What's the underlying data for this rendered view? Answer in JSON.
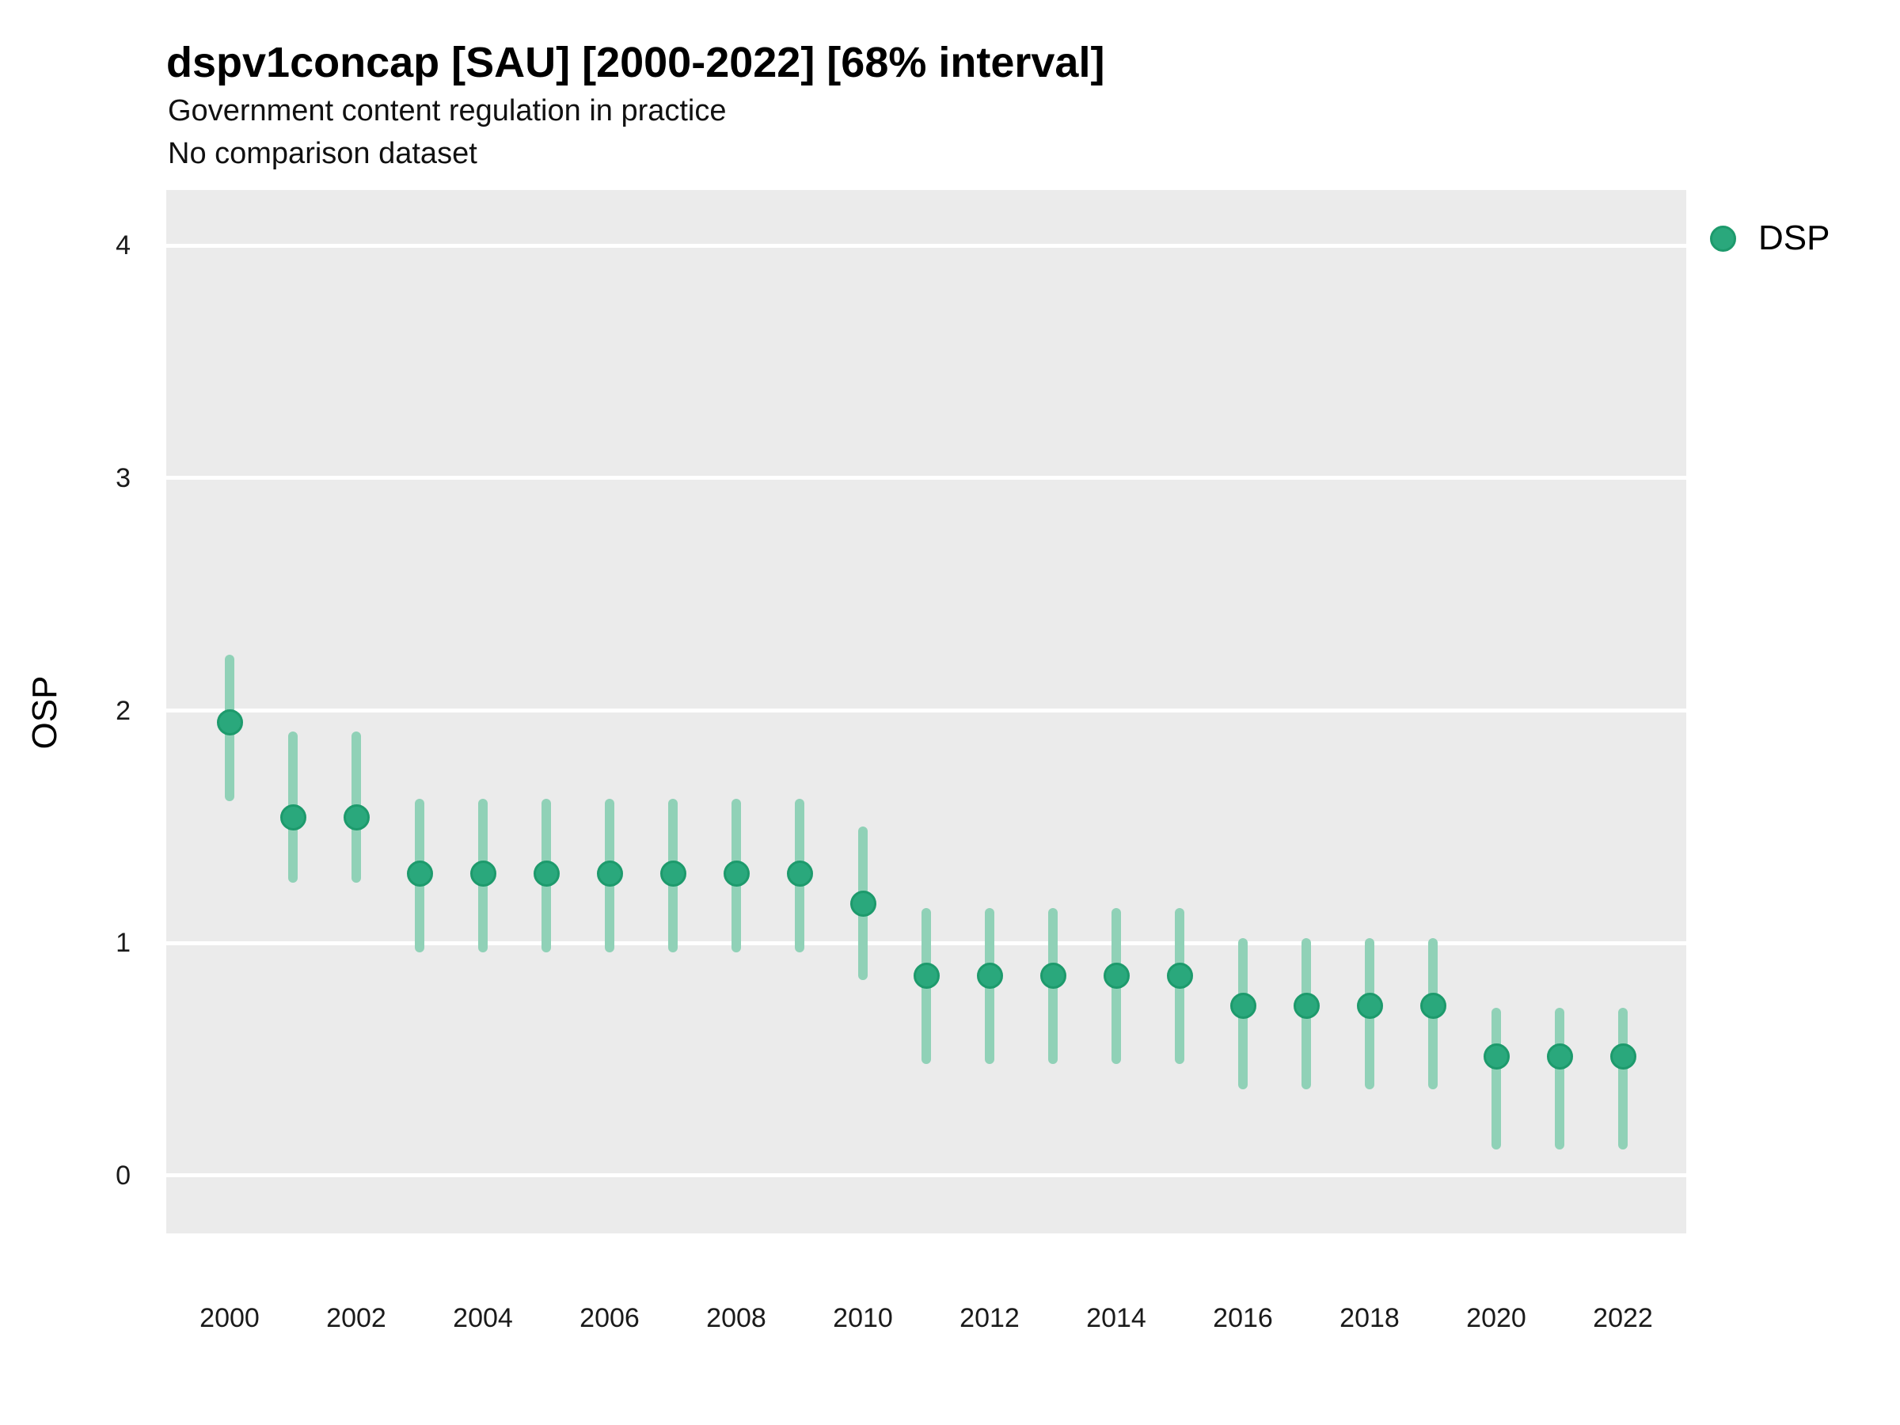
{
  "header": {
    "title": "dspv1concap [SAU] [2000-2022] [68% interval]",
    "subtitle": "Government content regulation in practice",
    "subtitle2": "No comparison dataset"
  },
  "colors": {
    "background": "#ffffff",
    "panel_bg": "#ebebeb",
    "gridline": "#ffffff",
    "point_fill": "#2aa87c",
    "point_stroke": "#1d9a6c",
    "interval": "#90d1b7",
    "title_text": "#000000",
    "tick_text": "#1a1a1a"
  },
  "legend": {
    "position": "right",
    "items": [
      {
        "label": "DSP",
        "swatch": "circle",
        "color": "#2aa87c"
      }
    ]
  },
  "chart_data": {
    "type": "scatter",
    "subtype": "pointrange",
    "title": "dspv1concap [SAU] [2000-2022] [68% interval]",
    "subtitle": "Government content regulation in practice",
    "annotation": "No comparison dataset",
    "interval_level": "68%",
    "xlabel": "",
    "ylabel": "OSP",
    "grid": "major-y-only",
    "legend_position": "right",
    "xlim": [
      1999,
      2023
    ],
    "ylim": [
      -0.25,
      4.24
    ],
    "yticks": [
      0,
      1,
      2,
      3,
      4
    ],
    "xticks": [
      2000,
      2002,
      2004,
      2006,
      2008,
      2010,
      2012,
      2014,
      2016,
      2018,
      2020,
      2022
    ],
    "series": [
      {
        "name": "DSP",
        "points": [
          {
            "year": 2000,
            "value": 1.95,
            "lo": 1.61,
            "hi": 2.24
          },
          {
            "year": 2001,
            "value": 1.54,
            "lo": 1.26,
            "hi": 1.91
          },
          {
            "year": 2002,
            "value": 1.54,
            "lo": 1.26,
            "hi": 1.91
          },
          {
            "year": 2003,
            "value": 1.3,
            "lo": 0.96,
            "hi": 1.62
          },
          {
            "year": 2004,
            "value": 1.3,
            "lo": 0.96,
            "hi": 1.62
          },
          {
            "year": 2005,
            "value": 1.3,
            "lo": 0.96,
            "hi": 1.62
          },
          {
            "year": 2006,
            "value": 1.3,
            "lo": 0.96,
            "hi": 1.62
          },
          {
            "year": 2007,
            "value": 1.3,
            "lo": 0.96,
            "hi": 1.62
          },
          {
            "year": 2008,
            "value": 1.3,
            "lo": 0.96,
            "hi": 1.62
          },
          {
            "year": 2009,
            "value": 1.3,
            "lo": 0.96,
            "hi": 1.62
          },
          {
            "year": 2010,
            "value": 1.17,
            "lo": 0.84,
            "hi": 1.5
          },
          {
            "year": 2011,
            "value": 0.86,
            "lo": 0.48,
            "hi": 1.15
          },
          {
            "year": 2012,
            "value": 0.86,
            "lo": 0.48,
            "hi": 1.15
          },
          {
            "year": 2013,
            "value": 0.86,
            "lo": 0.48,
            "hi": 1.15
          },
          {
            "year": 2014,
            "value": 0.86,
            "lo": 0.48,
            "hi": 1.15
          },
          {
            "year": 2015,
            "value": 0.86,
            "lo": 0.48,
            "hi": 1.15
          },
          {
            "year": 2016,
            "value": 0.73,
            "lo": 0.37,
            "hi": 1.02
          },
          {
            "year": 2017,
            "value": 0.73,
            "lo": 0.37,
            "hi": 1.02
          },
          {
            "year": 2018,
            "value": 0.73,
            "lo": 0.37,
            "hi": 1.02
          },
          {
            "year": 2019,
            "value": 0.73,
            "lo": 0.37,
            "hi": 1.02
          },
          {
            "year": 2020,
            "value": 0.51,
            "lo": 0.11,
            "hi": 0.72
          },
          {
            "year": 2021,
            "value": 0.51,
            "lo": 0.11,
            "hi": 0.72
          },
          {
            "year": 2022,
            "value": 0.51,
            "lo": 0.11,
            "hi": 0.72
          }
        ]
      }
    ]
  }
}
